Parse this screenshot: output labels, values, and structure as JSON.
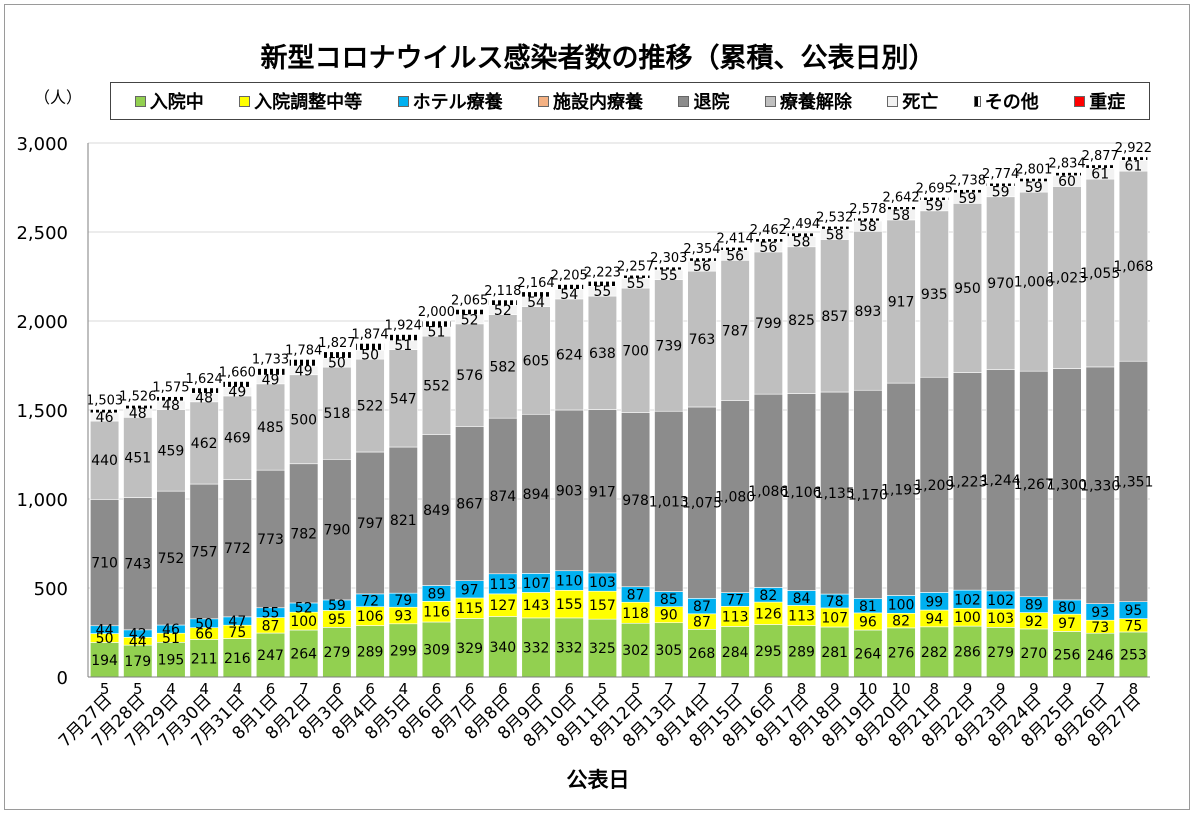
{
  "title": "新型コロナウイルス感染者数の推移（累積、公表日別）",
  "y_unit": "（人）",
  "x_title": "公表日",
  "legend": [
    {
      "label": "入院中",
      "color": "#92d050",
      "icon": "square"
    },
    {
      "label": "入院調整中等",
      "color": "#ffff00",
      "icon": "square"
    },
    {
      "label": "ホテル療養",
      "color": "#00b0f0",
      "icon": "square"
    },
    {
      "label": "施設内療養",
      "color": "#f4b183",
      "icon": "square"
    },
    {
      "label": "退院",
      "color": "#8c8c8c",
      "icon": "square"
    },
    {
      "label": "療養解除",
      "color": "#bfbfbf",
      "icon": "square"
    },
    {
      "label": "死亡",
      "color": "#f2f2f2",
      "icon": "square"
    },
    {
      "label": "その他",
      "color": "#000000",
      "icon": "pattern"
    },
    {
      "label": "重症",
      "color": "#ff0000",
      "icon": "square"
    }
  ],
  "chart_data": {
    "type": "bar",
    "stacked": true,
    "title": "新型コロナウイルス感染者数の推移（累積、公表日別）",
    "xlabel": "公表日",
    "ylabel": "（人）",
    "ylim": [
      0,
      3000
    ],
    "yticks": [
      "0",
      "500",
      "1,000",
      "1,500",
      "2,000",
      "2,500",
      "3,000"
    ],
    "ytick_values": [
      0,
      500,
      1000,
      1500,
      2000,
      2500,
      3000
    ],
    "categories": [
      "7月27日",
      "7月28日",
      "7月29日",
      "7月30日",
      "7月31日",
      "8月1日",
      "8月2日",
      "8月3日",
      "8月4日",
      "8月5日",
      "8月6日",
      "8月7日",
      "8月8日",
      "8月9日",
      "8月10日",
      "8月11日",
      "8月12日",
      "8月13日",
      "8月14日",
      "8月15日",
      "8月16日",
      "8月17日",
      "8月18日",
      "8月19日",
      "8月20日",
      "8月21日",
      "8月22日",
      "8月23日",
      "8月24日",
      "8月25日",
      "8月26日",
      "8月27日"
    ],
    "series": [
      {
        "name": "入院中",
        "color": "#92d050",
        "values": [
          194,
          179,
          195,
          211,
          216,
          247,
          264,
          279,
          289,
          299,
          309,
          329,
          340,
          332,
          332,
          325,
          302,
          305,
          268,
          284,
          295,
          289,
          281,
          264,
          276,
          282,
          286,
          279,
          270,
          256,
          246,
          253
        ]
      },
      {
        "name": "入院調整中等",
        "color": "#ffff00",
        "values": [
          50,
          44,
          51,
          66,
          75,
          87,
          100,
          95,
          106,
          93,
          116,
          115,
          127,
          143,
          155,
          157,
          118,
          90,
          87,
          113,
          126,
          113,
          107,
          96,
          82,
          94,
          100,
          103,
          92,
          97,
          73,
          75
        ]
      },
      {
        "name": "ホテル療養",
        "color": "#00b0f0",
        "values": [
          44,
          42,
          46,
          50,
          47,
          55,
          52,
          59,
          72,
          79,
          89,
          97,
          113,
          107,
          110,
          103,
          87,
          85,
          87,
          77,
          82,
          84,
          78,
          81,
          100,
          99,
          102,
          102,
          89,
          80,
          93,
          95
        ]
      },
      {
        "name": "施設内療養",
        "color": "#f4b183",
        "values": [
          0,
          0,
          0,
          0,
          0,
          0,
          0,
          0,
          0,
          0,
          0,
          0,
          0,
          0,
          0,
          0,
          0,
          0,
          0,
          0,
          0,
          0,
          0,
          0,
          0,
          0,
          0,
          0,
          0,
          0,
          0,
          0
        ]
      },
      {
        "name": "退院",
        "color": "#8c8c8c",
        "values": [
          710,
          743,
          752,
          757,
          772,
          773,
          782,
          790,
          797,
          821,
          849,
          867,
          874,
          894,
          903,
          917,
          978,
          1013,
          1075,
          1080,
          1086,
          1106,
          1135,
          1170,
          1193,
          1209,
          1223,
          1244,
          1267,
          1300,
          1330,
          1351
        ]
      },
      {
        "name": "療養解除",
        "color": "#bfbfbf",
        "values": [
          440,
          451,
          459,
          462,
          469,
          485,
          500,
          518,
          522,
          547,
          552,
          576,
          582,
          605,
          624,
          638,
          700,
          739,
          763,
          787,
          799,
          825,
          857,
          893,
          917,
          935,
          950,
          970,
          1006,
          1023,
          1055,
          1068
        ]
      },
      {
        "name": "死亡",
        "color": "#f2f2f2",
        "values": [
          46,
          48,
          48,
          48,
          49,
          49,
          49,
          50,
          50,
          51,
          51,
          52,
          52,
          54,
          54,
          55,
          55,
          55,
          56,
          56,
          56,
          58,
          58,
          58,
          58,
          59,
          59,
          59,
          59,
          60,
          61,
          61
        ]
      },
      {
        "name": "その他",
        "color": "#000000",
        "values": [
          19,
          19,
          24,
          30,
          32,
          37,
          37,
          36,
          38,
          34,
          34,
          29,
          30,
          29,
          27,
          28,
          17,
          16,
          18,
          17,
          18,
          19,
          16,
          16,
          16,
          17,
          18,
          17,
          18,
          18,
          19,
          19
        ]
      }
    ],
    "severe_label": "重症",
    "severe": [
      5,
      5,
      4,
      4,
      4,
      6,
      7,
      6,
      6,
      4,
      6,
      6,
      6,
      6,
      6,
      5,
      5,
      7,
      7,
      7,
      6,
      8,
      9,
      10,
      10,
      8,
      9,
      9,
      9,
      9,
      7,
      8
    ],
    "totals": [
      1503,
      1526,
      1575,
      1624,
      1660,
      1733,
      1784,
      1827,
      1874,
      1924,
      2000,
      2065,
      2118,
      2164,
      2205,
      2223,
      2257,
      2303,
      2354,
      2414,
      2462,
      2494,
      2532,
      2578,
      2642,
      2695,
      2738,
      2774,
      2801,
      2834,
      2877,
      2922
    ],
    "total_labels": [
      "1,503",
      "1,526",
      "1,575",
      "1,624",
      "1,660",
      "1,733",
      "1,784",
      "1,827",
      "1,874",
      "1,924",
      "2,000",
      "2,065",
      "2,118",
      "2,164",
      "2,205",
      "2,223",
      "2,257",
      "2,303",
      "2,354",
      "2,414",
      "2,462",
      "2,494",
      "2,532",
      "2,578",
      "2,642",
      "2,695",
      "2,738",
      "2,774",
      "2,801",
      "2,834",
      "2,877",
      "2,922"
    ],
    "value_labels": {
      "入院中": [
        "194",
        "179",
        "195",
        "211",
        "216",
        "247",
        "264",
        "279",
        "289",
        "299",
        "309",
        "329",
        "340",
        "332",
        "332",
        "325",
        "302",
        "305",
        "268",
        "284",
        "295",
        "289",
        "281",
        "264",
        "276",
        "282",
        "286",
        "279",
        "270",
        "256",
        "246",
        "253"
      ],
      "入院調整中等": [
        "50",
        "44",
        "51",
        "66",
        "75",
        "87",
        "100",
        "95",
        "106",
        "93",
        "116",
        "115",
        "127",
        "143",
        "155",
        "157",
        "118",
        "90",
        "87",
        "113",
        "126",
        "113",
        "107",
        "96",
        "82",
        "94",
        "100",
        "103",
        "92",
        "97",
        "73",
        "75"
      ],
      "ホテル療養": [
        "44",
        "42",
        "46",
        "50",
        "47",
        "55",
        "52",
        "59",
        "72",
        "79",
        "89",
        "97",
        "113",
        "107",
        "110",
        "103",
        "87",
        "85",
        "87",
        "77",
        "82",
        "84",
        "78",
        "81",
        "100",
        "99",
        "102",
        "102",
        "89",
        "80",
        "93",
        "95"
      ],
      "退院": [
        "710",
        "743",
        "752",
        "757",
        "772",
        "773",
        "782",
        "790",
        "797",
        "821",
        "849",
        "867",
        "874",
        "894",
        "903",
        "917",
        "978",
        "1,013",
        "1,075",
        "1,080",
        "1,086",
        "1,106",
        "1,135",
        "1,170",
        "1,193",
        "1,209",
        "1,223",
        "1,244",
        "1,267",
        "1,300",
        "1,330",
        "1,351"
      ],
      "療養解除": [
        "440",
        "451",
        "459",
        "462",
        "469",
        "485",
        "500",
        "518",
        "522",
        "547",
        "552",
        "576",
        "582",
        "605",
        "624",
        "638",
        "700",
        "739",
        "763",
        "787",
        "799",
        "825",
        "857",
        "893",
        "917",
        "935",
        "950",
        "970",
        "1,006",
        "1,023",
        "1,055",
        "1,068"
      ],
      "死亡": [
        "46",
        "48",
        "48",
        "48",
        "49",
        "49",
        "49",
        "50",
        "50",
        "51",
        "51",
        "52",
        "52",
        "54",
        "54",
        "55",
        "55",
        "55",
        "56",
        "56",
        "56",
        "58",
        "58",
        "58",
        "58",
        "59",
        "59",
        "59",
        "59",
        "60",
        "61",
        "61"
      ]
    }
  }
}
